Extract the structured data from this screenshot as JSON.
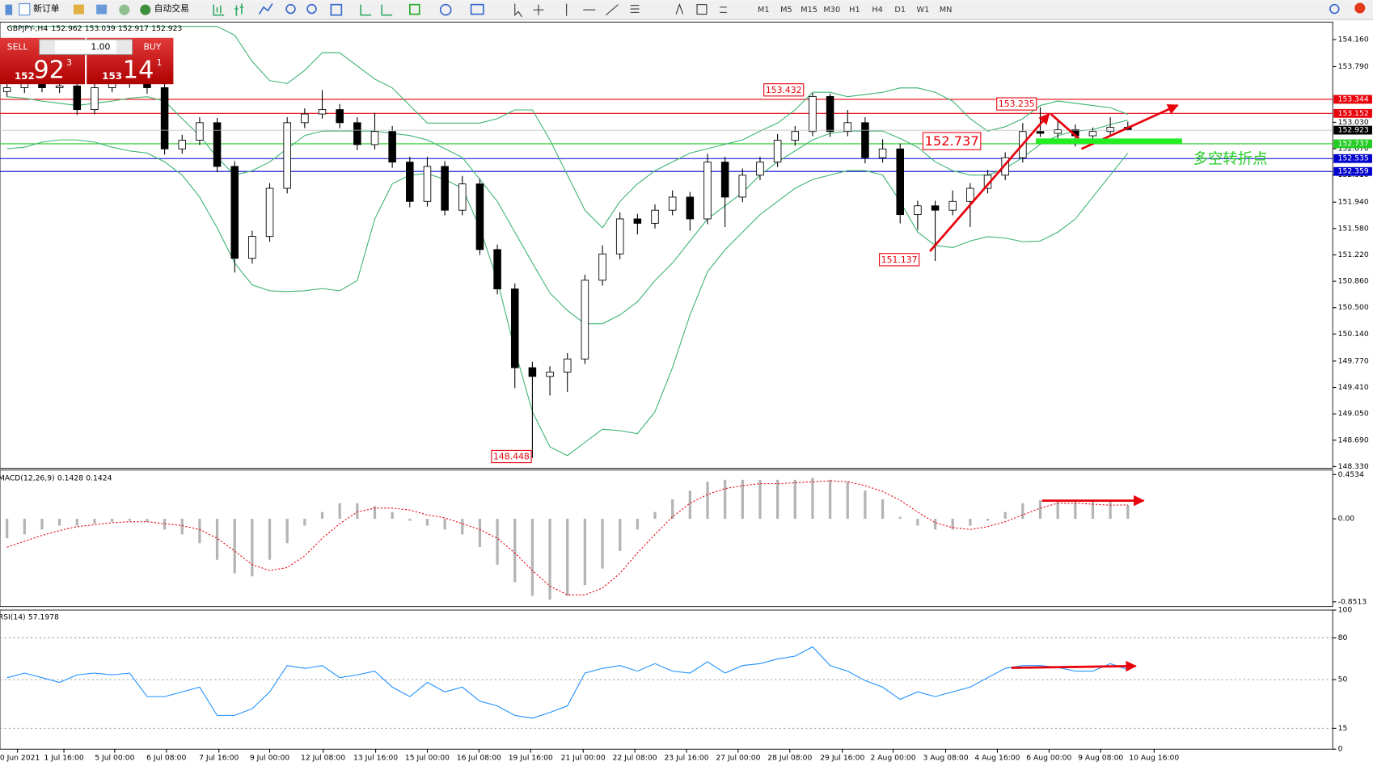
{
  "toolbar": {
    "new_order": "新订单",
    "auto_trade": "自动交易",
    "timeframes": [
      "M1",
      "M5",
      "M15",
      "M30",
      "H1",
      "H4",
      "D1",
      "W1",
      "MN"
    ]
  },
  "trade_panel": {
    "sell": "SELL",
    "buy": "BUY",
    "lots": "1.00",
    "sell_big": "152",
    "sell_pips": "92",
    "sell_frac": "3",
    "buy_big": "153",
    "buy_pips": "14",
    "buy_frac": "1"
  },
  "chart_data": [
    {
      "type": "candlestick",
      "title": "GBPJPY-,H4",
      "open": [
        153.45,
        153.503,
        153.563,
        153.503,
        153.527,
        153.204,
        153.503,
        153.563,
        153.598,
        153.503,
        152.667,
        152.786,
        153.025,
        152.428,
        151.173,
        151.472,
        152.129,
        153.025,
        153.144,
        153.204,
        153.025,
        152.726,
        152.905,
        152.487,
        151.95,
        152.428,
        151.83,
        152.189,
        151.293,
        150.755,
        149.68,
        149.56,
        149.62,
        149.799,
        150.874,
        151.233,
        151.711,
        151.651,
        151.83,
        152.009,
        151.711,
        152.487,
        152.009,
        152.308,
        152.487,
        152.786,
        152.905,
        153.383,
        152.905,
        153.025,
        152.547,
        152.667,
        151.77,
        151.89,
        151.83,
        151.95,
        152.129,
        152.308,
        152.547,
        152.905,
        152.88,
        152.929,
        152.846,
        152.905,
        152.962
      ],
      "high": [
        153.56,
        153.64,
        153.62,
        153.6,
        153.59,
        153.57,
        153.64,
        153.68,
        153.66,
        153.56,
        152.86,
        153.1,
        153.09,
        152.5,
        151.55,
        152.2,
        153.1,
        153.22,
        153.47,
        153.28,
        153.1,
        153.16,
        152.98,
        152.56,
        152.56,
        152.5,
        152.3,
        152.26,
        151.36,
        150.83,
        149.76,
        149.7,
        149.88,
        150.95,
        151.35,
        151.8,
        151.78,
        151.91,
        152.1,
        152.08,
        152.6,
        152.56,
        152.4,
        152.56,
        152.87,
        152.98,
        153.432,
        153.42,
        153.2,
        153.1,
        152.8,
        152.74,
        151.96,
        151.96,
        152.1,
        152.2,
        152.38,
        152.62,
        153.02,
        153.235,
        153.05,
        153.0,
        152.96,
        153.1,
        153.039
      ],
      "low": [
        153.38,
        153.43,
        153.44,
        153.43,
        153.13,
        153.14,
        153.44,
        153.5,
        153.42,
        152.59,
        152.6,
        152.72,
        152.35,
        150.98,
        151.1,
        151.4,
        152.06,
        152.95,
        153.08,
        152.95,
        152.65,
        152.66,
        152.41,
        151.87,
        151.88,
        151.76,
        151.76,
        151.22,
        150.68,
        149.4,
        148.448,
        149.3,
        149.35,
        149.73,
        150.8,
        151.16,
        151.5,
        151.58,
        151.76,
        151.55,
        151.64,
        151.6,
        151.94,
        152.24,
        152.42,
        152.71,
        152.84,
        152.83,
        152.84,
        152.47,
        152.48,
        151.65,
        151.56,
        151.137,
        151.76,
        151.6,
        152.06,
        152.24,
        152.48,
        152.83,
        152.81,
        152.7,
        152.72,
        152.84,
        152.917
      ],
      "close": [
        153.503,
        153.563,
        153.503,
        153.527,
        153.204,
        153.503,
        153.563,
        153.598,
        153.503,
        152.667,
        152.786,
        153.025,
        152.428,
        151.173,
        151.472,
        152.129,
        153.025,
        153.144,
        153.204,
        153.025,
        152.726,
        152.905,
        152.487,
        151.95,
        152.428,
        151.83,
        152.189,
        151.293,
        150.755,
        149.68,
        149.56,
        149.62,
        149.799,
        150.874,
        151.233,
        151.711,
        151.651,
        151.83,
        152.009,
        151.711,
        152.487,
        152.009,
        152.308,
        152.487,
        152.786,
        152.905,
        153.383,
        152.905,
        153.025,
        152.547,
        152.667,
        151.77,
        151.89,
        151.83,
        151.95,
        152.129,
        152.308,
        152.547,
        152.905,
        152.88,
        152.929,
        152.846,
        152.905,
        152.962,
        152.923
      ],
      "up_color": "#ffffff",
      "down_color": "#000000",
      "series": [
        {
          "color": "#3cb371",
          "values": [
            154.34,
            154.34,
            154.34,
            154.34,
            154.34,
            154.34,
            154.34,
            154.34,
            154.34,
            154.34,
            154.34,
            154.34,
            154.34,
            154.22,
            153.86,
            153.6,
            153.56,
            153.74,
            153.98,
            153.98,
            153.8,
            153.62,
            153.5,
            153.26,
            153.02,
            153.02,
            153.02,
            153.02,
            153.08,
            153.2,
            153.2,
            152.79,
            152.31,
            151.83,
            151.59,
            151.95,
            152.19,
            152.37,
            152.49,
            152.61,
            152.67,
            152.73,
            152.79,
            152.91,
            153.02,
            153.2,
            153.44,
            153.44,
            153.38,
            153.41,
            153.44,
            153.5,
            153.5,
            153.44,
            153.32,
            153.08,
            152.91,
            152.97,
            153.08,
            153.26,
            153.32,
            153.29,
            153.26,
            153.23,
            153.14
          ]
        },
        {
          "color": "#3cb371",
          "values": [
            153.38,
            153.36,
            153.32,
            153.29,
            153.26,
            153.29,
            153.32,
            153.36,
            153.38,
            153.32,
            153.08,
            152.85,
            152.55,
            152.31,
            152.37,
            152.49,
            152.67,
            152.85,
            152.91,
            152.91,
            152.91,
            152.91,
            152.88,
            152.85,
            152.79,
            152.67,
            152.55,
            152.25,
            151.95,
            151.53,
            151.11,
            150.7,
            150.46,
            150.28,
            150.28,
            150.4,
            150.58,
            150.87,
            151.11,
            151.41,
            151.71,
            151.89,
            152.07,
            152.31,
            152.49,
            152.64,
            152.79,
            152.88,
            152.91,
            152.91,
            152.91,
            152.81,
            152.69,
            152.49,
            152.37,
            152.31,
            152.31,
            152.4,
            152.55,
            152.73,
            152.85,
            152.91,
            152.93,
            153.0,
            153.06
          ]
        },
        {
          "color": "#3cb371",
          "values": [
            152.67,
            152.69,
            152.76,
            152.79,
            152.79,
            152.76,
            152.69,
            152.64,
            152.61,
            152.49,
            152.31,
            152.01,
            151.59,
            151.11,
            150.81,
            150.73,
            150.72,
            150.73,
            150.76,
            150.73,
            150.87,
            151.71,
            152.19,
            152.31,
            152.33,
            152.25,
            152.13,
            151.59,
            150.87,
            149.92,
            149.08,
            148.6,
            148.48,
            148.66,
            148.84,
            148.82,
            148.78,
            149.08,
            149.68,
            150.4,
            150.99,
            151.29,
            151.53,
            151.77,
            151.95,
            152.13,
            152.25,
            152.31,
            152.37,
            152.37,
            152.31,
            151.95,
            151.53,
            151.35,
            151.32,
            151.41,
            151.47,
            151.45,
            151.4,
            151.41,
            151.53,
            151.71,
            152.01,
            152.31,
            152.61
          ]
        }
      ],
      "levels": [
        {
          "value": 153.344,
          "color": "#e8000b"
        },
        {
          "value": 153.152,
          "color": "#e8000b"
        },
        {
          "value": 152.737,
          "color": "#22cc22"
        },
        {
          "value": 152.535,
          "color": "#0000cc"
        },
        {
          "value": 152.359,
          "color": "#0000cc"
        }
      ],
      "annotation": "多空转折点",
      "ylim": [
        148.306,
        154.399
      ],
      "yticks": [
        {
          "value": 154.16,
          "label": "154.160"
        },
        {
          "value": 153.79,
          "label": "153.790"
        },
        {
          "value": 153.03,
          "label": "153.030"
        },
        {
          "value": 152.67,
          "label": "152.670"
        },
        {
          "value": 152.31,
          "label": "152.310"
        },
        {
          "value": 151.94,
          "label": "151.940"
        },
        {
          "value": 151.58,
          "label": "151.580"
        },
        {
          "value": 151.22,
          "label": "151.220"
        },
        {
          "value": 150.86,
          "label": "150.860"
        },
        {
          "value": 150.5,
          "label": "150.500"
        },
        {
          "value": 150.14,
          "label": "150.140"
        },
        {
          "value": 149.77,
          "label": "149.770"
        },
        {
          "value": 149.41,
          "label": "149.410"
        },
        {
          "value": 149.05,
          "label": "149.050"
        },
        {
          "value": 148.69,
          "label": "148.690"
        },
        {
          "value": 148.33,
          "label": "148.330"
        }
      ],
      "xlim": [
        -0.4,
        75.7
      ],
      "xticks": [
        {
          "value": 0.6,
          "label": "30 Jun 2021"
        },
        {
          "value": 3.25,
          "label": "1 Jul 16:00"
        },
        {
          "value": 6.15,
          "label": "5 Jul 00:00"
        },
        {
          "value": 9.1,
          "label": "6 Jul 08:00"
        },
        {
          "value": 12.1,
          "label": "7 Jul 16:00"
        },
        {
          "value": 15,
          "label": "9 Jul 00:00"
        },
        {
          "value": 18.05,
          "label": "12 Jul 08:00"
        },
        {
          "value": 21.05,
          "label": "13 Jul 16:00"
        },
        {
          "value": 24,
          "label": "15 Jul 00:00"
        },
        {
          "value": 26.95,
          "label": "16 Jul 08:00"
        },
        {
          "value": 29.9,
          "label": "19 Jul 16:00"
        },
        {
          "value": 32.9,
          "label": "21 Jul 00:00"
        },
        {
          "value": 35.85,
          "label": "22 Jul 08:00"
        },
        {
          "value": 38.8,
          "label": "23 Jul 16:00"
        },
        {
          "value": 41.75,
          "label": "27 Jul 00:00"
        },
        {
          "value": 44.7,
          "label": "28 Jul 08:00"
        },
        {
          "value": 47.7,
          "label": "29 Jul 16:00"
        },
        {
          "value": 50.6,
          "label": "2 Aug 00:00"
        },
        {
          "value": 53.6,
          "label": "3 Aug 08:00"
        },
        {
          "value": 56.55,
          "label": "4 Aug 16:00"
        },
        {
          "value": 59.5,
          "label": "6 Aug 00:00"
        },
        {
          "value": 62.45,
          "label": "9 Aug 08:00"
        },
        {
          "value": 65.5,
          "label": "10 Aug 16:00"
        }
      ]
    },
    {
      "type": "macd",
      "title": "MACD(12,26,9)",
      "series": [
        {
          "color": "#b4b4b4",
          "values": [
            -0.2,
            -0.16,
            -0.11,
            -0.07,
            -0.07,
            -0.05,
            -0.03,
            -0.02,
            -0.03,
            -0.11,
            -0.16,
            -0.25,
            -0.42,
            -0.56,
            -0.59,
            -0.42,
            -0.25,
            -0.07,
            0.07,
            0.16,
            0.16,
            0.13,
            0.07,
            -0.02,
            -0.07,
            -0.11,
            -0.16,
            -0.29,
            -0.47,
            -0.65,
            -0.79,
            -0.83,
            -0.79,
            -0.68,
            -0.51,
            -0.33,
            -0.11,
            0.07,
            0.2,
            0.29,
            0.38,
            0.4,
            0.4,
            0.4,
            0.4,
            0.4,
            0.42,
            0.4,
            0.38,
            0.29,
            0.2,
            0.02,
            -0.07,
            -0.11,
            -0.11,
            -0.07,
            -0.02,
            0.07,
            0.16,
            0.19,
            0.19,
            0.19,
            0.19,
            0.19,
            0.1428
          ]
        },
        {
          "color": "#e8000b",
          "values": [
            -0.29,
            -0.23,
            -0.17,
            -0.12,
            -0.08,
            -0.06,
            -0.04,
            -0.03,
            -0.03,
            -0.05,
            -0.07,
            -0.11,
            -0.2,
            -0.33,
            -0.47,
            -0.53,
            -0.5,
            -0.38,
            -0.2,
            -0.05,
            0.07,
            0.11,
            0.11,
            0.09,
            0.04,
            0.01,
            -0.05,
            -0.11,
            -0.2,
            -0.35,
            -0.53,
            -0.69,
            -0.78,
            -0.78,
            -0.71,
            -0.56,
            -0.35,
            -0.16,
            0.02,
            0.16,
            0.25,
            0.31,
            0.34,
            0.36,
            0.36,
            0.37,
            0.38,
            0.39,
            0.38,
            0.34,
            0.28,
            0.19,
            0.07,
            -0.04,
            -0.09,
            -0.11,
            -0.08,
            -0.03,
            0.04,
            0.11,
            0.16,
            0.16,
            0.15,
            0.14,
            0.1424
          ]
        }
      ],
      "ylim": [
        -0.9,
        0.5
      ],
      "yticks": [
        0.4534,
        {
          "value": 0,
          "label": "0.00"
        },
        -0.8513
      ]
    },
    {
      "type": "line",
      "title": "RSI(14)",
      "series": [
        {
          "color": "#1e90ff",
          "values": [
            51.4,
            54.7,
            51.4,
            48.0,
            53.4,
            54.7,
            53.4,
            54.7,
            37.8,
            37.8,
            41.2,
            44.6,
            24.3,
            24.3,
            29.1,
            41.2,
            60.1,
            58.1,
            60.1,
            51.4,
            53.4,
            56.1,
            44.6,
            37.8,
            48.0,
            41.2,
            44.6,
            34.5,
            31.1,
            24.3,
            22.3,
            26.4,
            31.1,
            54.7,
            58.1,
            60.1,
            56.1,
            61.5,
            56.1,
            54.7,
            62.8,
            54.7,
            60.1,
            61.5,
            64.9,
            66.9,
            73.6,
            60.1,
            56.1,
            49.3,
            44.6,
            35.8,
            41.2,
            37.8,
            41.2,
            44.6,
            51.4,
            58.1,
            60.1,
            60.1,
            58.8,
            56.1,
            56.1,
            61.5,
            57.1978
          ]
        }
      ],
      "ylim": [
        0,
        100
      ],
      "yticks": [
        100,
        80,
        50,
        15,
        0
      ]
    }
  ]
}
